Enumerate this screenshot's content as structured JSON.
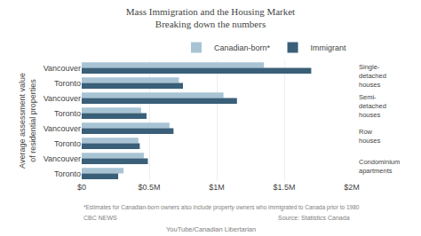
{
  "chart_data": {
    "type": "bar",
    "orientation": "horizontal",
    "title": "Mass Immigration and the Housing Market",
    "subtitle": "Breaking down the numbers",
    "ylabel": "Average assessment value\nof residential properties",
    "categories": [
      "Vancouver",
      "Toronto",
      "Vancouver",
      "Toronto",
      "Vancouver",
      "Toronto",
      "Vancouver",
      "Toronto"
    ],
    "group_labels": [
      "Single-\ndetached\nhouses",
      "Semi-\ndetached\nhouses",
      "Row\nhouses",
      "Condominium\napartments"
    ],
    "series": [
      {
        "name": "Canadian-born*",
        "color": "#a8c4d4",
        "values": [
          1350000,
          720000,
          1050000,
          440000,
          650000,
          420000,
          460000,
          310000
        ]
      },
      {
        "name": "Immigrant",
        "color": "#3a5f78",
        "values": [
          1700000,
          750000,
          1150000,
          480000,
          680000,
          430000,
          490000,
          270000
        ]
      }
    ],
    "xlim": [
      0,
      2000000
    ],
    "xticks": [
      {
        "value": 0,
        "label": "$0"
      },
      {
        "value": 500000,
        "label": "$0.5M"
      },
      {
        "value": 1000000,
        "label": "$1M"
      },
      {
        "value": 1500000,
        "label": "$1.5M"
      },
      {
        "value": 2000000,
        "label": "$2M"
      }
    ],
    "grid": true,
    "legend": "upper right",
    "annotations": [
      "*Estimates for Canadian-born owners also include property owners who immigrated to Canada prior to 1980",
      "CBC NEWS",
      "Source: Statistics Canada",
      "YouTube/Canadian Libertarian"
    ]
  }
}
